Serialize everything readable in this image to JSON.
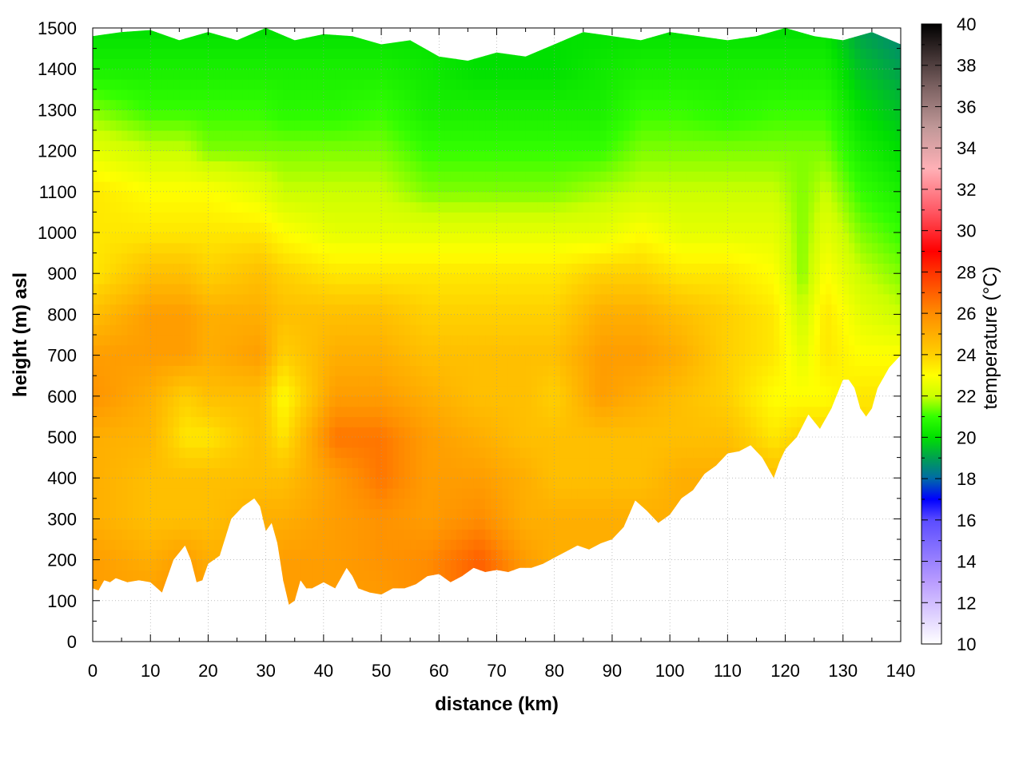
{
  "chart_data": {
    "type": "heatmap",
    "title": "",
    "xlabel": "distance (km)",
    "ylabel": "height (m) asl",
    "colorbar_label": "temperature (°C)",
    "xlim": [
      0,
      140
    ],
    "ylim": [
      0,
      1500
    ],
    "xticks": [
      0,
      10,
      20,
      30,
      40,
      50,
      60,
      70,
      80,
      90,
      100,
      110,
      120,
      130,
      140
    ],
    "yticks": [
      0,
      100,
      200,
      300,
      400,
      500,
      600,
      700,
      800,
      900,
      1000,
      1100,
      1200,
      1300,
      1400,
      1500
    ],
    "colorbar_range": [
      10,
      40
    ],
    "colorbar_ticks": [
      10,
      12,
      14,
      16,
      18,
      20,
      22,
      24,
      26,
      28,
      30,
      32,
      34,
      36,
      38,
      40
    ],
    "grid": true,
    "colormap": [
      {
        "value": 10,
        "color": "#ffffff"
      },
      {
        "value": 13,
        "color": "#b99cff"
      },
      {
        "value": 16,
        "color": "#5a4cff"
      },
      {
        "value": 17,
        "color": "#0000ff"
      },
      {
        "value": 18,
        "color": "#006aa8"
      },
      {
        "value": 19,
        "color": "#00a050"
      },
      {
        "value": 20,
        "color": "#00e000"
      },
      {
        "value": 21,
        "color": "#33ff00"
      },
      {
        "value": 22,
        "color": "#ccff00"
      },
      {
        "value": 23,
        "color": "#ffff00"
      },
      {
        "value": 24,
        "color": "#ffd000"
      },
      {
        "value": 26,
        "color": "#ff8c00"
      },
      {
        "value": 28,
        "color": "#ff3300"
      },
      {
        "value": 29,
        "color": "#ff0000"
      },
      {
        "value": 31,
        "color": "#ff5a66"
      },
      {
        "value": 33,
        "color": "#ffb0b6"
      },
      {
        "value": 35,
        "color": "#c09898"
      },
      {
        "value": 37,
        "color": "#7a6060"
      },
      {
        "value": 40,
        "color": "#000000"
      }
    ],
    "terrain": {
      "x": [
        0,
        1,
        2,
        3,
        4,
        6,
        8,
        10,
        12,
        14,
        16,
        17,
        18,
        19,
        20,
        22,
        24,
        26,
        28,
        29,
        30,
        31,
        32,
        33,
        34,
        35,
        36,
        37,
        38,
        40,
        42,
        44,
        45,
        46,
        48,
        50,
        52,
        54,
        56,
        58,
        60,
        62,
        64,
        66,
        68,
        70,
        72,
        74,
        76,
        78,
        80,
        82,
        84,
        86,
        88,
        90,
        92,
        94,
        96,
        98,
        100,
        102,
        104,
        106,
        108,
        110,
        112,
        114,
        116,
        118,
        119,
        120,
        122,
        124,
        126,
        128,
        130,
        131,
        132,
        133,
        134,
        135,
        136,
        138,
        140
      ],
      "y": [
        130,
        125,
        150,
        145,
        155,
        145,
        150,
        145,
        120,
        200,
        235,
        200,
        145,
        150,
        190,
        210,
        300,
        330,
        350,
        330,
        270,
        290,
        240,
        150,
        90,
        100,
        150,
        130,
        130,
        145,
        130,
        180,
        160,
        130,
        120,
        115,
        130,
        130,
        140,
        160,
        165,
        145,
        160,
        180,
        170,
        175,
        170,
        180,
        180,
        190,
        205,
        220,
        235,
        225,
        240,
        250,
        280,
        345,
        320,
        290,
        310,
        350,
        370,
        410,
        430,
        460,
        465,
        480,
        450,
        400,
        440,
        470,
        500,
        555,
        520,
        570,
        640,
        640,
        620,
        570,
        550,
        570,
        620,
        670,
        700
      ]
    },
    "top_edge": {
      "x": [
        0,
        5,
        10,
        15,
        20,
        25,
        30,
        35,
        40,
        45,
        50,
        55,
        60,
        65,
        70,
        75,
        80,
        85,
        90,
        95,
        100,
        105,
        110,
        115,
        120,
        125,
        130,
        135,
        140
      ],
      "y": [
        1480,
        1490,
        1495,
        1470,
        1490,
        1470,
        1500,
        1470,
        1485,
        1480,
        1460,
        1470,
        1430,
        1420,
        1440,
        1430,
        1460,
        1490,
        1480,
        1470,
        1490,
        1480,
        1470,
        1480,
        1500,
        1480,
        1470,
        1490,
        1460
      ]
    },
    "temperature_field": {
      "profile_heights": [
        100,
        200,
        300,
        400,
        500,
        600,
        700,
        800,
        900,
        1000,
        1100,
        1200,
        1300,
        1400,
        1500
      ],
      "profiles": [
        {
          "x": 0,
          "t": [
            25.5,
            25.5,
            25,
            25,
            25,
            25.8,
            25.5,
            24.5,
            23.5,
            23.5,
            23.5,
            22.5,
            21.5,
            20.5,
            20
          ]
        },
        {
          "x": 10,
          "t": [
            25.5,
            25,
            24.5,
            24.5,
            24.8,
            25,
            25.5,
            25.5,
            24.5,
            23.5,
            23,
            22,
            21,
            20.5,
            20
          ]
        },
        {
          "x": 16,
          "t": [
            26,
            25.5,
            24.5,
            24.5,
            23.5,
            24,
            25.5,
            25.5,
            24.5,
            23.5,
            23,
            22,
            21,
            20.5,
            20
          ]
        },
        {
          "x": 20,
          "t": [
            25.5,
            25,
            24.5,
            24.5,
            23.5,
            24.5,
            25,
            25,
            24,
            23.5,
            23,
            21.5,
            21,
            20.5,
            20
          ]
        },
        {
          "x": 29,
          "t": [
            25,
            25,
            25,
            24.5,
            24.5,
            24.5,
            25.5,
            25,
            24.5,
            23.5,
            22.5,
            21.5,
            21,
            20.5,
            20
          ]
        },
        {
          "x": 33,
          "t": [
            25.5,
            25.5,
            25,
            24.5,
            23.5,
            23,
            24,
            24.5,
            24,
            23,
            22,
            21.5,
            20.8,
            20.5,
            20
          ]
        },
        {
          "x": 42,
          "t": [
            25.5,
            25.5,
            25.5,
            25.5,
            26.5,
            25.5,
            25,
            24.5,
            23.5,
            22.5,
            22,
            21.5,
            20.8,
            20.5,
            20
          ]
        },
        {
          "x": 50,
          "t": [
            25.5,
            25.8,
            25.8,
            26.5,
            26.5,
            25.5,
            25,
            24.5,
            23.5,
            22.5,
            22,
            21.5,
            21,
            20.5,
            20
          ]
        },
        {
          "x": 58,
          "t": [
            26,
            26,
            25.5,
            25.5,
            25.5,
            25,
            24.5,
            24,
            23.5,
            22.5,
            21.5,
            21,
            20.5,
            20.3,
            20
          ]
        },
        {
          "x": 67,
          "t": [
            27,
            27,
            26,
            25.5,
            25,
            24.5,
            24.5,
            24,
            23.5,
            22.5,
            21.5,
            21,
            20.5,
            20,
            20
          ]
        },
        {
          "x": 75,
          "t": [
            26,
            25.5,
            25,
            25,
            24.5,
            24.5,
            24.5,
            24,
            23.5,
            22.5,
            21.5,
            21,
            20.5,
            20,
            20
          ]
        },
        {
          "x": 80,
          "t": [
            25.5,
            25,
            25,
            24.5,
            24.5,
            24,
            24.5,
            24,
            23.5,
            22.5,
            21.5,
            21,
            20.5,
            20,
            20
          ]
        },
        {
          "x": 88,
          "t": [
            25,
            25,
            25,
            24.5,
            24.5,
            25.5,
            25.5,
            25,
            24,
            22.5,
            21.8,
            21,
            20.5,
            20.3,
            20
          ]
        },
        {
          "x": 95,
          "t": [
            25,
            25,
            25,
            24.5,
            24.5,
            25,
            25.5,
            25,
            24,
            23,
            22,
            21.5,
            21,
            20.5,
            20
          ]
        },
        {
          "x": 102,
          "t": [
            25,
            25,
            25,
            25,
            24.5,
            24.5,
            25,
            24.5,
            23.5,
            22.5,
            22,
            21.5,
            21,
            20.5,
            20
          ]
        },
        {
          "x": 110,
          "t": [
            25,
            25,
            25,
            25,
            24.5,
            24,
            24,
            24,
            23.5,
            22.5,
            22,
            21.5,
            20.8,
            20.5,
            20
          ]
        },
        {
          "x": 118,
          "t": [
            24.5,
            24.5,
            24.5,
            24.5,
            23.5,
            23,
            23.5,
            23.5,
            23,
            22.5,
            22,
            21.5,
            21,
            20.5,
            20
          ]
        },
        {
          "x": 123,
          "t": [
            24.5,
            24.5,
            24.5,
            24.5,
            24,
            23,
            22.5,
            22,
            21.5,
            21.5,
            21.5,
            21.5,
            21,
            20.5,
            20
          ]
        },
        {
          "x": 127,
          "t": [
            24.5,
            24.5,
            24.5,
            24.5,
            24,
            23,
            23.5,
            23.5,
            23,
            22.5,
            22,
            21.5,
            21,
            20.5,
            20
          ]
        },
        {
          "x": 133,
          "t": [
            24,
            24,
            24,
            24,
            24,
            23.5,
            23,
            22.5,
            22,
            21.5,
            21,
            20.5,
            20,
            19.5,
            19
          ]
        },
        {
          "x": 140,
          "t": [
            23.5,
            23.5,
            23.5,
            23.5,
            23.5,
            23.5,
            23,
            22,
            21.5,
            21,
            20.5,
            20,
            19.5,
            19,
            18.5
          ]
        }
      ]
    }
  }
}
